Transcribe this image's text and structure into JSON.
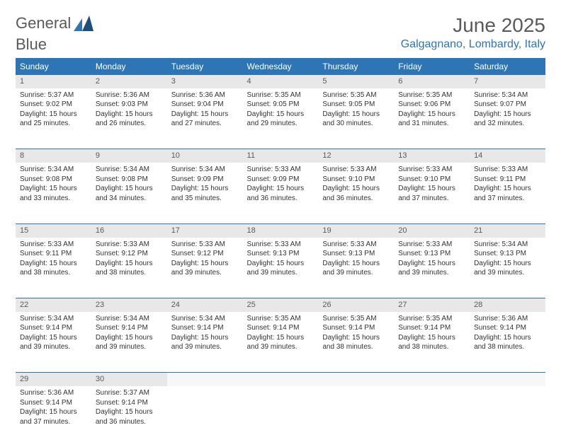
{
  "logo": {
    "word1": "General",
    "word2": "Blue"
  },
  "title": "June 2025",
  "location": "Galgagnano, Lombardy, Italy",
  "colors": {
    "accent": "#2e75b6",
    "header_text": "#ffffff",
    "daynum_bg": "#e8e8e8",
    "empty_bg": "#f7f7f7",
    "text": "#333333",
    "muted": "#5a5a5a",
    "background": "#ffffff"
  },
  "weekdays": [
    "Sunday",
    "Monday",
    "Tuesday",
    "Wednesday",
    "Thursday",
    "Friday",
    "Saturday"
  ],
  "labels": {
    "sunrise": "Sunrise:",
    "sunset": "Sunset:",
    "daylight": "Daylight:"
  },
  "weeks": [
    [
      {
        "n": 1,
        "sr": "5:37 AM",
        "ss": "9:02 PM",
        "dl": "15 hours and 25 minutes."
      },
      {
        "n": 2,
        "sr": "5:36 AM",
        "ss": "9:03 PM",
        "dl": "15 hours and 26 minutes."
      },
      {
        "n": 3,
        "sr": "5:36 AM",
        "ss": "9:04 PM",
        "dl": "15 hours and 27 minutes."
      },
      {
        "n": 4,
        "sr": "5:35 AM",
        "ss": "9:05 PM",
        "dl": "15 hours and 29 minutes."
      },
      {
        "n": 5,
        "sr": "5:35 AM",
        "ss": "9:05 PM",
        "dl": "15 hours and 30 minutes."
      },
      {
        "n": 6,
        "sr": "5:35 AM",
        "ss": "9:06 PM",
        "dl": "15 hours and 31 minutes."
      },
      {
        "n": 7,
        "sr": "5:34 AM",
        "ss": "9:07 PM",
        "dl": "15 hours and 32 minutes."
      }
    ],
    [
      {
        "n": 8,
        "sr": "5:34 AM",
        "ss": "9:08 PM",
        "dl": "15 hours and 33 minutes."
      },
      {
        "n": 9,
        "sr": "5:34 AM",
        "ss": "9:08 PM",
        "dl": "15 hours and 34 minutes."
      },
      {
        "n": 10,
        "sr": "5:34 AM",
        "ss": "9:09 PM",
        "dl": "15 hours and 35 minutes."
      },
      {
        "n": 11,
        "sr": "5:33 AM",
        "ss": "9:09 PM",
        "dl": "15 hours and 36 minutes."
      },
      {
        "n": 12,
        "sr": "5:33 AM",
        "ss": "9:10 PM",
        "dl": "15 hours and 36 minutes."
      },
      {
        "n": 13,
        "sr": "5:33 AM",
        "ss": "9:10 PM",
        "dl": "15 hours and 37 minutes."
      },
      {
        "n": 14,
        "sr": "5:33 AM",
        "ss": "9:11 PM",
        "dl": "15 hours and 37 minutes."
      }
    ],
    [
      {
        "n": 15,
        "sr": "5:33 AM",
        "ss": "9:11 PM",
        "dl": "15 hours and 38 minutes."
      },
      {
        "n": 16,
        "sr": "5:33 AM",
        "ss": "9:12 PM",
        "dl": "15 hours and 38 minutes."
      },
      {
        "n": 17,
        "sr": "5:33 AM",
        "ss": "9:12 PM",
        "dl": "15 hours and 39 minutes."
      },
      {
        "n": 18,
        "sr": "5:33 AM",
        "ss": "9:13 PM",
        "dl": "15 hours and 39 minutes."
      },
      {
        "n": 19,
        "sr": "5:33 AM",
        "ss": "9:13 PM",
        "dl": "15 hours and 39 minutes."
      },
      {
        "n": 20,
        "sr": "5:33 AM",
        "ss": "9:13 PM",
        "dl": "15 hours and 39 minutes."
      },
      {
        "n": 21,
        "sr": "5:34 AM",
        "ss": "9:13 PM",
        "dl": "15 hours and 39 minutes."
      }
    ],
    [
      {
        "n": 22,
        "sr": "5:34 AM",
        "ss": "9:14 PM",
        "dl": "15 hours and 39 minutes."
      },
      {
        "n": 23,
        "sr": "5:34 AM",
        "ss": "9:14 PM",
        "dl": "15 hours and 39 minutes."
      },
      {
        "n": 24,
        "sr": "5:34 AM",
        "ss": "9:14 PM",
        "dl": "15 hours and 39 minutes."
      },
      {
        "n": 25,
        "sr": "5:35 AM",
        "ss": "9:14 PM",
        "dl": "15 hours and 39 minutes."
      },
      {
        "n": 26,
        "sr": "5:35 AM",
        "ss": "9:14 PM",
        "dl": "15 hours and 38 minutes."
      },
      {
        "n": 27,
        "sr": "5:35 AM",
        "ss": "9:14 PM",
        "dl": "15 hours and 38 minutes."
      },
      {
        "n": 28,
        "sr": "5:36 AM",
        "ss": "9:14 PM",
        "dl": "15 hours and 38 minutes."
      }
    ],
    [
      {
        "n": 29,
        "sr": "5:36 AM",
        "ss": "9:14 PM",
        "dl": "15 hours and 37 minutes."
      },
      {
        "n": 30,
        "sr": "5:37 AM",
        "ss": "9:14 PM",
        "dl": "15 hours and 36 minutes."
      },
      null,
      null,
      null,
      null,
      null
    ]
  ]
}
